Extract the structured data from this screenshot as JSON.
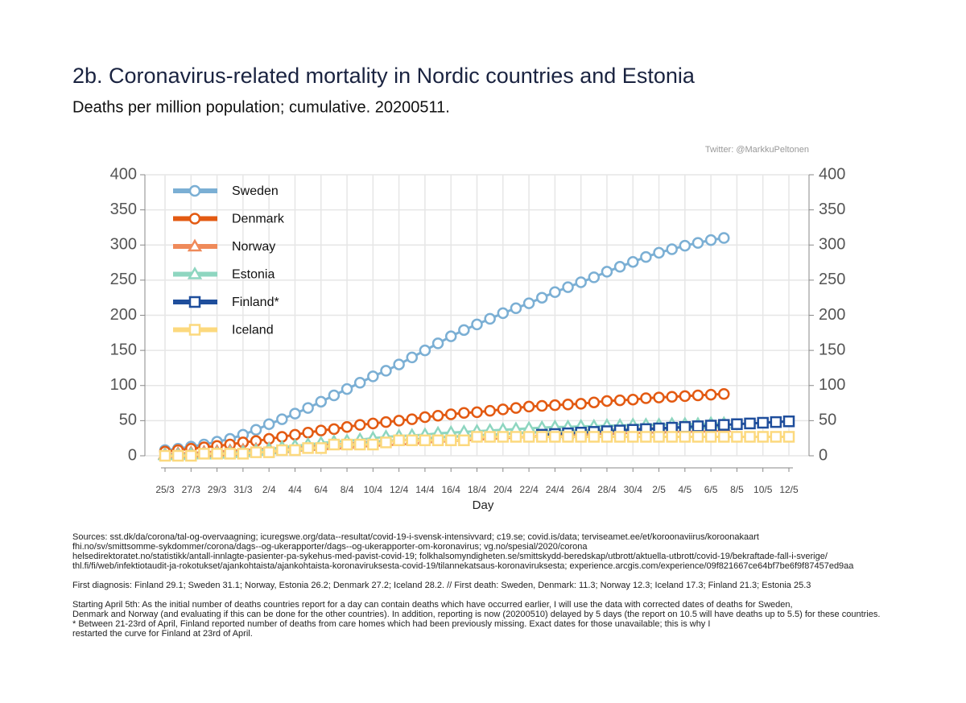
{
  "chart_data": {
    "type": "line",
    "title": "2b. Coronavirus-related mortality in Nordic countries and Estonia",
    "subtitle": "Deaths per million population; cumulative. 20200511.",
    "credit": "Twitter: @MarkkuPeltonen",
    "x_label": "Day",
    "categories": [
      "25/3",
      null,
      "27/3",
      null,
      "29/3",
      null,
      "31/3",
      null,
      "2/4",
      null,
      "4/4",
      null,
      "6/4",
      null,
      "8/4",
      null,
      "10/4",
      null,
      "12/4",
      null,
      "14/4",
      null,
      "16/4",
      null,
      "18/4",
      null,
      "20/4",
      null,
      "22/4",
      null,
      "24/4",
      null,
      "26/4",
      null,
      "28/4",
      null,
      "30/4",
      null,
      "2/5",
      null,
      "4/5",
      null,
      "6/5",
      null,
      "8/5",
      null,
      "10/5",
      null,
      "12/5"
    ],
    "ylim": [
      0,
      400
    ],
    "yticks": [
      0,
      50,
      100,
      150,
      200,
      250,
      300,
      350,
      400
    ],
    "y2lim": [
      0,
      400
    ],
    "y2ticks": [
      0,
      50,
      100,
      150,
      200,
      250,
      300,
      350,
      400
    ],
    "grid": true,
    "legend": "upper left",
    "series": [
      {
        "name": "Sweden",
        "color": "#7bafd4",
        "marker": "circle",
        "values": [
          8,
          10,
          13,
          16,
          20,
          24,
          30,
          37,
          45,
          52,
          60,
          68,
          77,
          86,
          95,
          104,
          113,
          121,
          130,
          140,
          150,
          160,
          170,
          179,
          187,
          195,
          203,
          210,
          217,
          225,
          233,
          240,
          247,
          254,
          262,
          269,
          276,
          283,
          289,
          294,
          299,
          303,
          307,
          310,
          null,
          null,
          null,
          null,
          null
        ]
      },
      {
        "name": "Denmark",
        "color": "#e35a12",
        "marker": "circle",
        "values": [
          6,
          8,
          10,
          12,
          14,
          16,
          19,
          21,
          24,
          27,
          30,
          33,
          36,
          38,
          41,
          44,
          46,
          48,
          50,
          52,
          55,
          57,
          59,
          61,
          62,
          64,
          66,
          68,
          70,
          71,
          72,
          73,
          74,
          76,
          78,
          79,
          80,
          82,
          83,
          84,
          85,
          86,
          87,
          88,
          null,
          null,
          null,
          null,
          null
        ]
      },
      {
        "name": "Norway",
        "color": "#ef8a5a",
        "marker": "triangle",
        "values": [
          2,
          3,
          4,
          5,
          6,
          7,
          8,
          9,
          10,
          11,
          13,
          14,
          15,
          16,
          17,
          19,
          20,
          21,
          22,
          23,
          25,
          26,
          27,
          28,
          29,
          30,
          31,
          32,
          33,
          34,
          34,
          35,
          36,
          37,
          37,
          38,
          38,
          39,
          39,
          40,
          40,
          40,
          41,
          41,
          null,
          null,
          null,
          null,
          null
        ]
      },
      {
        "name": "Estonia",
        "color": "#8ed6c0",
        "marker": "triangle",
        "values": [
          1,
          1,
          2,
          2,
          3,
          4,
          5,
          7,
          9,
          12,
          14,
          16,
          18,
          20,
          21,
          23,
          25,
          27,
          28,
          29,
          30,
          32,
          33,
          34,
          35,
          36,
          37,
          38,
          39,
          40,
          41,
          41,
          42,
          42,
          43,
          43,
          44,
          44,
          44,
          45,
          45,
          45,
          46,
          46,
          null,
          null,
          null,
          null,
          null
        ]
      },
      {
        "name": "Finland*",
        "color": "#1f4e9c",
        "marker": "square",
        "values": [
          null,
          null,
          null,
          null,
          null,
          null,
          null,
          null,
          null,
          null,
          null,
          null,
          null,
          null,
          null,
          null,
          null,
          null,
          null,
          null,
          null,
          null,
          null,
          null,
          null,
          null,
          null,
          null,
          null,
          30,
          31,
          32,
          33,
          34,
          35,
          36,
          37,
          38,
          39,
          40,
          41,
          42,
          43,
          44,
          45,
          46,
          47,
          48,
          49
        ]
      },
      {
        "name": "Iceland",
        "color": "#fcd97e",
        "marker": "square",
        "values": [
          0,
          0,
          0,
          3,
          3,
          3,
          3,
          5,
          5,
          8,
          8,
          11,
          11,
          16,
          16,
          16,
          16,
          19,
          22,
          22,
          22,
          22,
          22,
          22,
          27,
          27,
          27,
          27,
          27,
          27,
          27,
          27,
          27,
          27,
          27,
          27,
          27,
          27,
          27,
          27,
          27,
          27,
          27,
          27,
          27,
          27,
          27,
          27,
          27
        ]
      }
    ],
    "notes": [
      [
        "Sources: sst.dk/da/corona/tal-og-overvaagning; icuregswe.org/data--resultat/covid-19-i-svensk-intensivvard; c19.se; covid.is/data;  terviseamet.ee/et/koroonaviirus/koroonakaart",
        "fhi.no/sv/smittsomme-sykdommer/corona/dags--og-ukerapporter/dags--og-ukerapporter-om-koronavirus; vg.no/spesial/2020/corona",
        "helsedirektoratet.no/statistikk/antall-innlagte-pasienter-pa-sykehus-med-pavist-covid-19; folkhalsomyndigheten.se/smittskydd-beredskap/utbrott/aktuella-utbrott/covid-19/bekraftade-fall-i-sverige/",
        "thl.fi/fi/web/infektiotaudit-ja-rokotukset/ajankohtaista/ajankohtaista-koronaviruksesta-covid-19/tilannekatsaus-koronaviruksesta; experience.arcgis.com/experience/09f821667ce64bf7be6f9f87457ed9aa"
      ],
      [
        "First diagnosis: Finland 29.1; Sweden 31.1; Norway, Estonia 26.2; Denmark 27.2; Iceland 28.2. // First death: Sweden, Denmark: 11.3; Norway 12.3; Iceland 17.3; Finland 21.3; Estonia 25.3"
      ],
      [
        "Starting April 5th: As the initial number of deaths countries report for a day can contain deaths which have occurred earlier, I will use the data with corrected dates of deaths for Sweden,",
        "Denmark and Norway (and evaluating if this can be done for the other countries). In addition, reporting is now (20200510) delayed by 5 days (the report on 10.5 will have deaths up to 5.5) for these countries.",
        "* Between 21-23rd of April, Finland reported number of deaths from care homes which had been previously missing. Exact dates for those unavailable; this is why I",
        "restarted the curve for Finland at 23rd of April."
      ]
    ]
  }
}
